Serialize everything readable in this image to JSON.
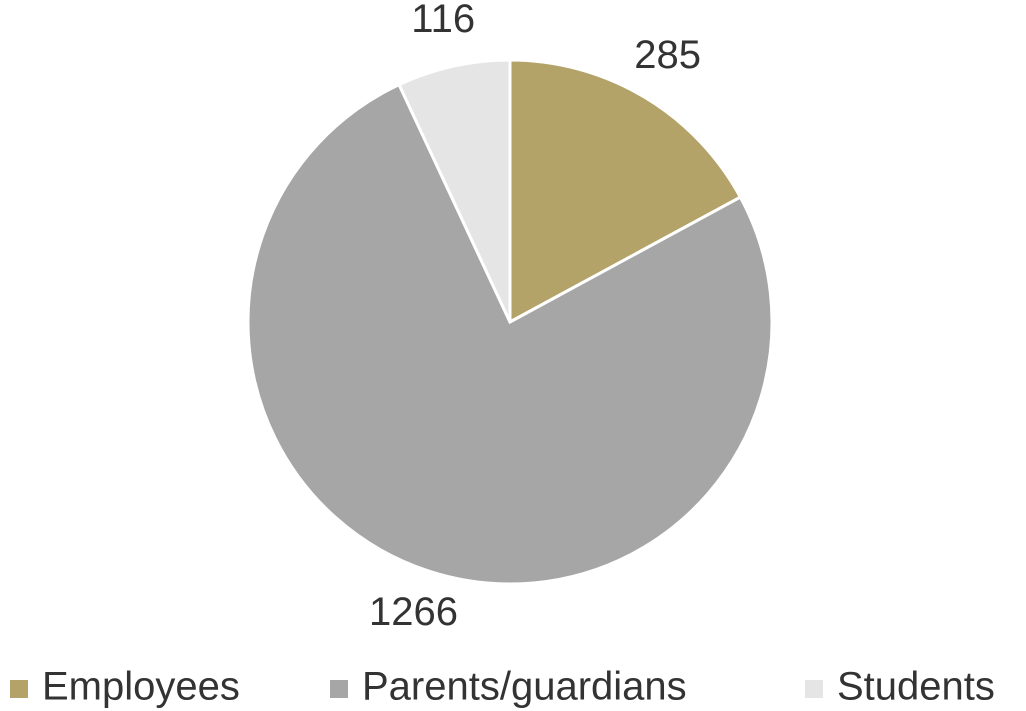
{
  "chart_data": {
    "type": "pie",
    "categories": [
      "Employees",
      "Parents/guardians",
      "Students"
    ],
    "values": [
      285,
      1266,
      116
    ],
    "colors": [
      "#b3a369",
      "#a6a6a6",
      "#e5e5e5"
    ],
    "legend": "bottom"
  }
}
